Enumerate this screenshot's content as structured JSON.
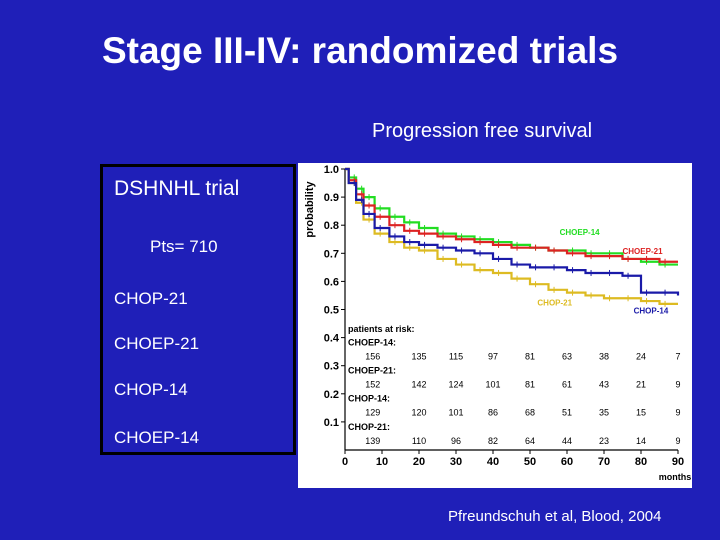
{
  "slide": {
    "title": "Stage III-IV: randomized trials",
    "subtitle": "Progression free survival",
    "citation": "Pfreundschuh et al, Blood, 2004"
  },
  "trial_box": {
    "trial_name": "DSHNHL trial",
    "patients": "Pts= 710",
    "arms": [
      "CHOP-21",
      "CHOEP-21",
      "CHOP-14",
      "CHOEP-14"
    ]
  },
  "chart_data": {
    "type": "line",
    "title": "Progression free survival",
    "xlabel": "months",
    "ylabel": "probability",
    "xlim": [
      0,
      90
    ],
    "ylim": [
      0,
      1.0
    ],
    "x_ticks": [
      0,
      10,
      20,
      30,
      40,
      50,
      60,
      70,
      80,
      90
    ],
    "y_ticks": [
      0.1,
      0.2,
      0.3,
      0.4,
      0.5,
      0.6,
      0.7,
      0.8,
      0.9,
      1.0
    ],
    "grid": false,
    "series": [
      {
        "name": "CHOEP-14",
        "color": "#22dd22",
        "points": [
          [
            0,
            1.0
          ],
          [
            1,
            0.97
          ],
          [
            3,
            0.93
          ],
          [
            5,
            0.9
          ],
          [
            8,
            0.86
          ],
          [
            12,
            0.83
          ],
          [
            16,
            0.81
          ],
          [
            20,
            0.79
          ],
          [
            25,
            0.77
          ],
          [
            30,
            0.76
          ],
          [
            35,
            0.75
          ],
          [
            40,
            0.74
          ],
          [
            45,
            0.73
          ],
          [
            50,
            0.72
          ],
          [
            55,
            0.71
          ],
          [
            60,
            0.71
          ],
          [
            65,
            0.7
          ],
          [
            70,
            0.7
          ],
          [
            75,
            0.68
          ],
          [
            80,
            0.67
          ],
          [
            85,
            0.66
          ],
          [
            90,
            0.66
          ]
        ]
      },
      {
        "name": "CHOEP-21",
        "color": "#dd2222",
        "points": [
          [
            0,
            1.0
          ],
          [
            1,
            0.96
          ],
          [
            3,
            0.91
          ],
          [
            5,
            0.87
          ],
          [
            8,
            0.83
          ],
          [
            12,
            0.8
          ],
          [
            16,
            0.78
          ],
          [
            20,
            0.77
          ],
          [
            25,
            0.76
          ],
          [
            30,
            0.75
          ],
          [
            35,
            0.74
          ],
          [
            40,
            0.73
          ],
          [
            45,
            0.72
          ],
          [
            50,
            0.72
          ],
          [
            55,
            0.71
          ],
          [
            60,
            0.7
          ],
          [
            65,
            0.69
          ],
          [
            70,
            0.69
          ],
          [
            75,
            0.68
          ],
          [
            80,
            0.68
          ],
          [
            85,
            0.67
          ],
          [
            90,
            0.67
          ]
        ]
      },
      {
        "name": "CHOP-21",
        "color": "#ddbb22",
        "points": [
          [
            0,
            1.0
          ],
          [
            1,
            0.95
          ],
          [
            3,
            0.88
          ],
          [
            5,
            0.82
          ],
          [
            8,
            0.77
          ],
          [
            12,
            0.74
          ],
          [
            16,
            0.72
          ],
          [
            20,
            0.71
          ],
          [
            25,
            0.68
          ],
          [
            30,
            0.66
          ],
          [
            35,
            0.64
          ],
          [
            40,
            0.63
          ],
          [
            45,
            0.61
          ],
          [
            50,
            0.59
          ],
          [
            55,
            0.57
          ],
          [
            60,
            0.56
          ],
          [
            65,
            0.55
          ],
          [
            70,
            0.54
          ],
          [
            75,
            0.54
          ],
          [
            80,
            0.53
          ],
          [
            85,
            0.52
          ],
          [
            90,
            0.52
          ]
        ]
      },
      {
        "name": "CHOP-14",
        "color": "#1a1aa8",
        "points": [
          [
            0,
            1.0
          ],
          [
            1,
            0.95
          ],
          [
            3,
            0.89
          ],
          [
            5,
            0.84
          ],
          [
            8,
            0.79
          ],
          [
            12,
            0.76
          ],
          [
            16,
            0.74
          ],
          [
            20,
            0.73
          ],
          [
            25,
            0.72
          ],
          [
            30,
            0.71
          ],
          [
            35,
            0.7
          ],
          [
            40,
            0.68
          ],
          [
            45,
            0.66
          ],
          [
            50,
            0.65
          ],
          [
            55,
            0.65
          ],
          [
            60,
            0.64
          ],
          [
            65,
            0.63
          ],
          [
            70,
            0.63
          ],
          [
            75,
            0.62
          ],
          [
            80,
            0.56
          ],
          [
            85,
            0.56
          ],
          [
            90,
            0.55
          ]
        ]
      }
    ],
    "series_labels": [
      {
        "text": "CHOEP-14",
        "color": "#22dd22",
        "x": 58,
        "y": 0.765
      },
      {
        "text": "CHOEP-21",
        "color": "#dd2222",
        "x": 75,
        "y": 0.698
      },
      {
        "text": "CHOP-21",
        "color": "#ddbb22",
        "x": 52,
        "y": 0.515
      },
      {
        "text": "CHOP-14",
        "color": "#1a1aa8",
        "x": 78,
        "y": 0.485
      }
    ],
    "risk_table": {
      "header": "patients at risk:",
      "time_points": [
        10,
        20,
        30,
        40,
        50,
        60,
        70,
        80,
        90
      ],
      "first_value_x": 7.5,
      "rows": [
        {
          "label": "CHOEP-14:",
          "values": [
            156,
            135,
            115,
            97,
            81,
            63,
            38,
            24,
            7
          ],
          "label_y": 0.372,
          "values_y": 0.322
        },
        {
          "label": "CHOEP-21:",
          "values": [
            152,
            142,
            124,
            101,
            81,
            61,
            43,
            21,
            9
          ],
          "label_y": 0.272,
          "values_y": 0.222
        },
        {
          "label": "CHOP-14:",
          "values": [
            129,
            120,
            101,
            86,
            68,
            51,
            35,
            15,
            9
          ],
          "label_y": 0.172,
          "values_y": 0.122
        },
        {
          "label": "CHOP-21:",
          "values": [
            139,
            110,
            96,
            82,
            64,
            44,
            23,
            14,
            9
          ],
          "label_y": 0.072,
          "values_y": 0.022
        }
      ]
    }
  }
}
